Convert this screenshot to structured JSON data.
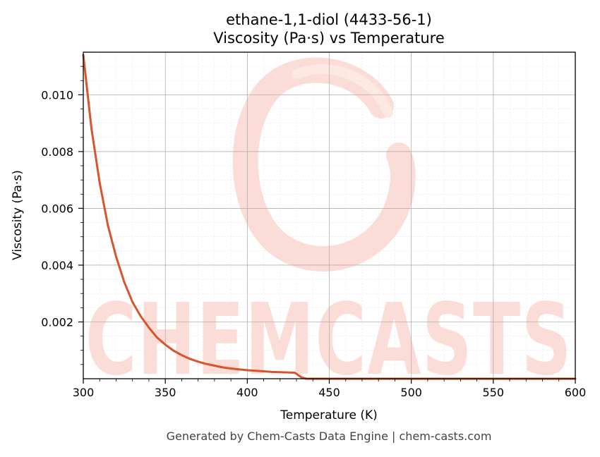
{
  "chart_data": {
    "type": "line",
    "title_line1": "ethane-1,1-diol (4433-56-1)",
    "title_line2": "Viscosity (Pa·s) vs Temperature",
    "xlabel": "Temperature (K)",
    "ylabel": "Viscosity (Pa·s)",
    "xlim": [
      300,
      600
    ],
    "ylim": [
      0.0,
      0.0115
    ],
    "x_ticks": [
      300,
      350,
      400,
      450,
      500,
      550,
      600
    ],
    "x_tick_labels": [
      "300",
      "350",
      "400",
      "450",
      "500",
      "550",
      "600"
    ],
    "y_ticks": [
      0.002,
      0.004,
      0.006,
      0.008,
      0.01
    ],
    "y_tick_labels": [
      "0.002",
      "0.004",
      "0.006",
      "0.008",
      "0.010"
    ],
    "grid": true,
    "series": [
      {
        "color": "#d9542a",
        "x": [
          300,
          305,
          310,
          315,
          320,
          325,
          330,
          335,
          340,
          345,
          350,
          355,
          360,
          365,
          370,
          375,
          380,
          385,
          390,
          395,
          400,
          405,
          410,
          415,
          420,
          425,
          429,
          433,
          436,
          450,
          500,
          550,
          600
        ],
        "y": [
          0.0114,
          0.0088,
          0.0069,
          0.0054,
          0.0043,
          0.0034,
          0.0027,
          0.0022,
          0.0018,
          0.00145,
          0.0012,
          0.00099,
          0.00083,
          0.0007,
          0.0006,
          0.00052,
          0.00046,
          0.0004,
          0.00036,
          0.00033,
          0.0003,
          0.00028,
          0.00026,
          0.00024,
          0.00023,
          0.00022,
          0.00021,
          5e-05,
          0.0,
          0.0,
          0.0,
          0.0,
          0.0
        ]
      }
    ]
  },
  "watermark": {
    "text": "CHEMCASTS",
    "color": "#fcd6cf"
  },
  "footer": "Generated by Chem-Casts Data Engine | chem-casts.com"
}
